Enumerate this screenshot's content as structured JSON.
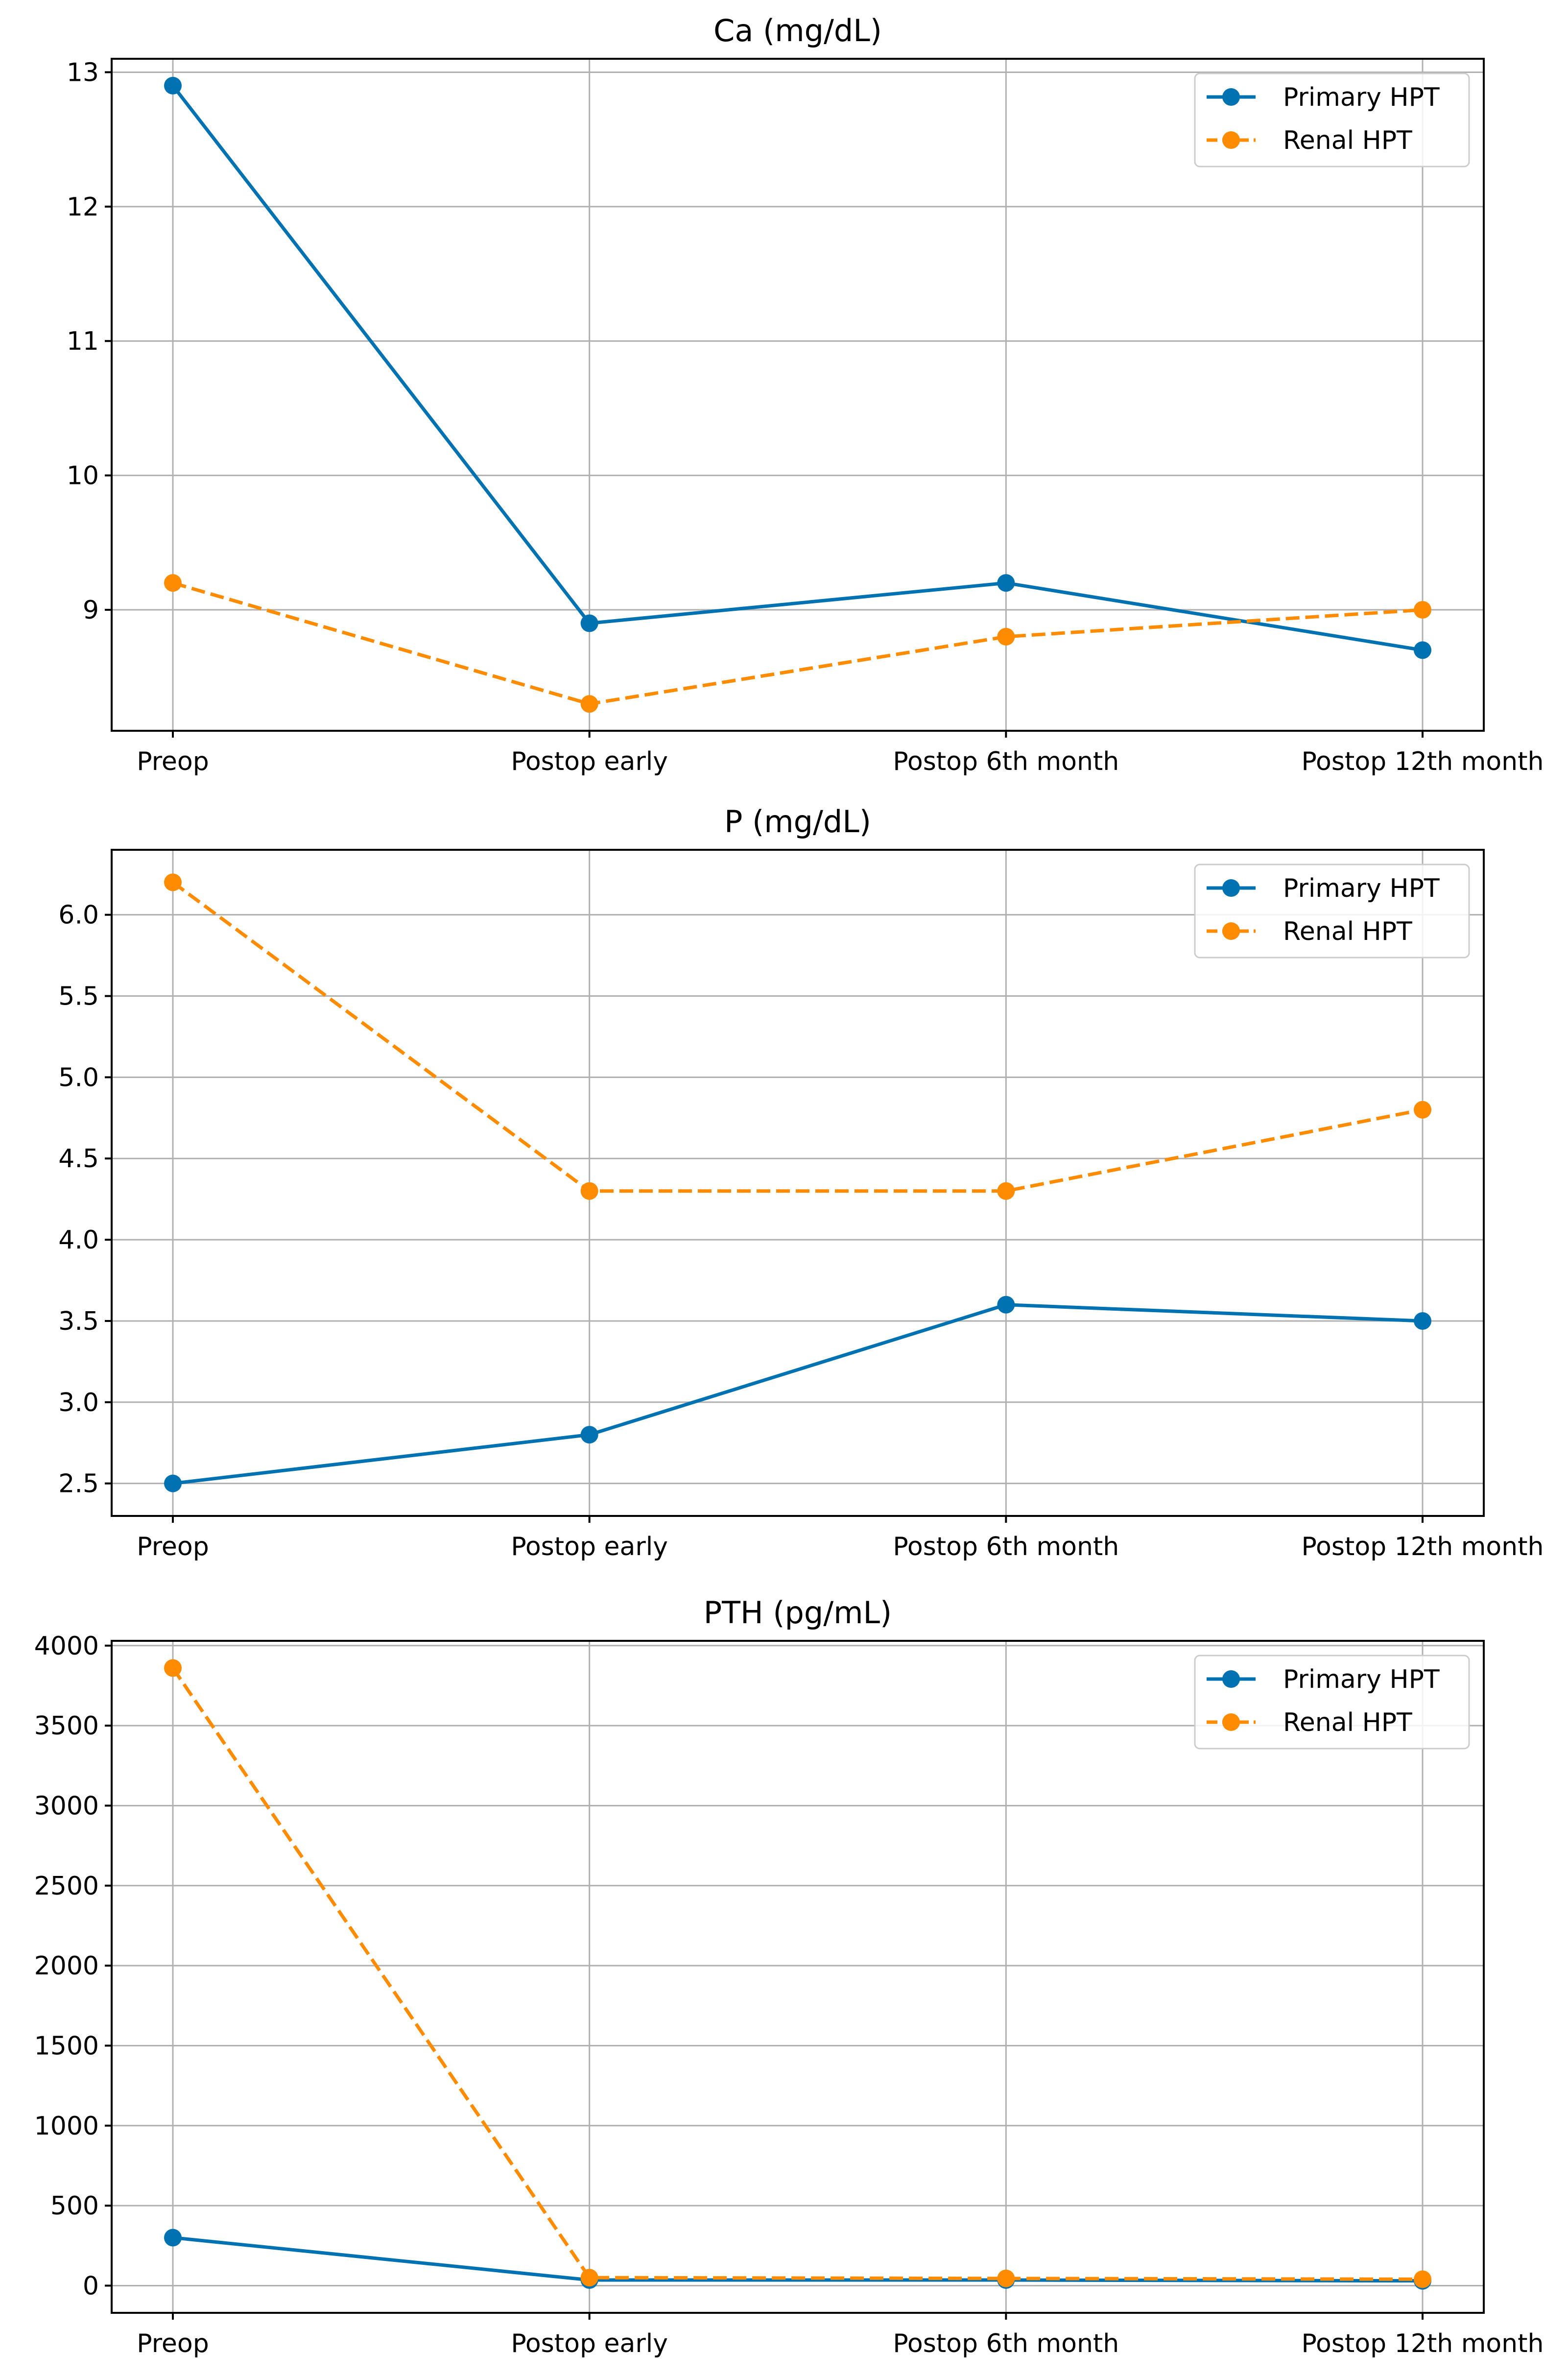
{
  "chart_data": [
    {
      "type": "line",
      "title": "Ca (mg/dL)",
      "xlabel": "",
      "ylabel": "",
      "categories": [
        "Preop",
        "Postop early",
        "Postop 6th month",
        "Postop 12th month"
      ],
      "ylim": [
        8.1,
        13.1
      ],
      "yticks": [
        9,
        10,
        11,
        12,
        13
      ],
      "ytick_labels": [
        "9",
        "10",
        "11",
        "12",
        "13"
      ],
      "grid": true,
      "legend_position": "top-right",
      "series": [
        {
          "name": "Primary HPT",
          "color": "#0072B2",
          "linestyle": "solid",
          "marker": "circle",
          "values": [
            12.9,
            8.9,
            9.2,
            8.7
          ]
        },
        {
          "name": "Renal HPT",
          "color": "#FF8C00",
          "linestyle": "dashed",
          "marker": "circle",
          "values": [
            9.2,
            8.3,
            8.8,
            9.0
          ]
        }
      ]
    },
    {
      "type": "line",
      "title": "P (mg/dL)",
      "xlabel": "",
      "ylabel": "",
      "categories": [
        "Preop",
        "Postop early",
        "Postop 6th month",
        "Postop 12th month"
      ],
      "ylim": [
        2.3,
        6.4
      ],
      "yticks": [
        2.5,
        3.0,
        3.5,
        4.0,
        4.5,
        5.0,
        5.5,
        6.0
      ],
      "ytick_labels": [
        "2.5",
        "3.0",
        "3.5",
        "4.0",
        "4.5",
        "5.0",
        "5.5",
        "6.0"
      ],
      "grid": true,
      "legend_position": "top-right",
      "series": [
        {
          "name": "Primary HPT",
          "color": "#0072B2",
          "linestyle": "solid",
          "marker": "circle",
          "values": [
            2.5,
            2.8,
            3.6,
            3.5
          ]
        },
        {
          "name": "Renal HPT",
          "color": "#FF8C00",
          "linestyle": "dashed",
          "marker": "circle",
          "values": [
            6.2,
            4.3,
            4.3,
            4.8
          ]
        }
      ]
    },
    {
      "type": "line",
      "title": "PTH (pg/mL)",
      "xlabel": "",
      "ylabel": "",
      "categories": [
        "Preop",
        "Postop early",
        "Postop 6th month",
        "Postop 12th month"
      ],
      "ylim": [
        -170,
        4030
      ],
      "yticks": [
        0,
        500,
        1000,
        1500,
        2000,
        2500,
        3000,
        3500,
        4000
      ],
      "ytick_labels": [
        "0",
        "500",
        "1000",
        "1500",
        "2000",
        "2500",
        "3000",
        "3500",
        "4000"
      ],
      "grid": true,
      "legend_position": "top-right",
      "series": [
        {
          "name": "Primary HPT",
          "color": "#0072B2",
          "linestyle": "solid",
          "marker": "circle",
          "values": [
            300,
            35,
            35,
            30
          ]
        },
        {
          "name": "Renal HPT",
          "color": "#FF8C00",
          "linestyle": "dashed",
          "marker": "circle",
          "values": [
            3860,
            50,
            45,
            40
          ]
        }
      ]
    }
  ]
}
